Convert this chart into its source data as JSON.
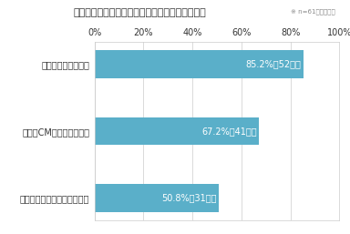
{
  "title": "『図』投資割合が減少した（減少見込みの）広告",
  "subtitle": "※ n=61／複数回答",
  "categories": [
    "セールスプロモーション広告",
    "テレビCM以外のマス広告",
    "インターネット広告"
  ],
  "values": [
    50.8,
    67.2,
    85.2
  ],
  "labels": [
    "50.8%（31名）",
    "67.2%（41名）",
    "85.2%（52名）"
  ],
  "bar_color": "#5aafc9",
  "background_color": "#ffffff",
  "grid_color": "#cccccc",
  "text_color": "#333333",
  "bar_text_color": "#ffffff",
  "xlim": [
    0,
    100
  ],
  "xticks": [
    0,
    20,
    40,
    60,
    80,
    100
  ],
  "xtick_labels": [
    "0%",
    "20%",
    "40%",
    "60%",
    "80%",
    "100%"
  ]
}
